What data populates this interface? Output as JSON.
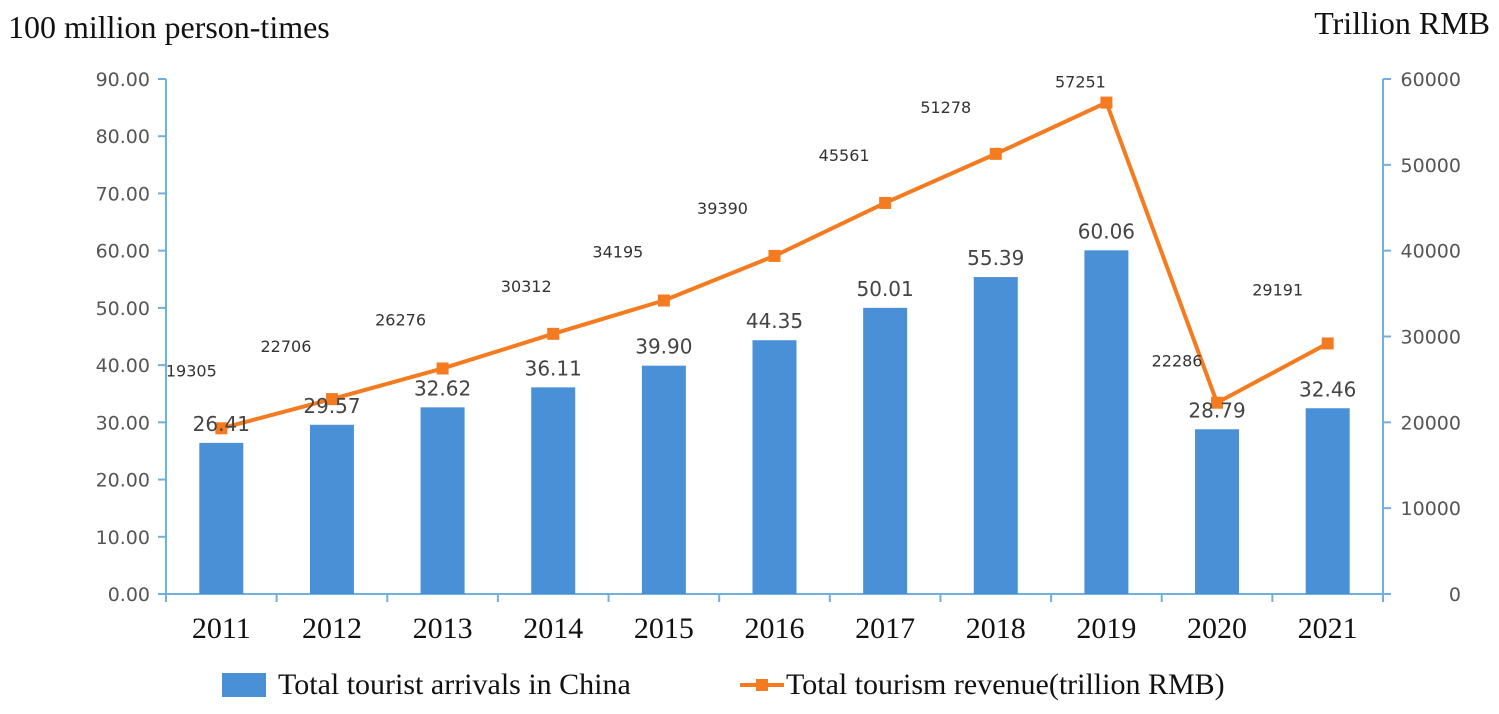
{
  "chart_data": {
    "type": "bar+line",
    "categories": [
      "2011",
      "2012",
      "2013",
      "2014",
      "2015",
      "2016",
      "2017",
      "2018",
      "2019",
      "2020",
      "2021"
    ],
    "left_axis": {
      "label": "100 million person-times",
      "ticks": [
        "0.00",
        "10.00",
        "20.00",
        "30.00",
        "40.00",
        "50.00",
        "60.00",
        "70.00",
        "80.00",
        "90.00"
      ],
      "range": [
        0,
        90
      ]
    },
    "right_axis": {
      "label": "Trillion RMB",
      "ticks": [
        "0",
        "10000",
        "20000",
        "30000",
        "40000",
        "50000",
        "60000"
      ],
      "range": [
        0,
        60000
      ]
    },
    "series": [
      {
        "name": "Total tourist arrivals in China",
        "type": "bar",
        "axis": "left",
        "color": "#4a90d6",
        "values": [
          26.41,
          29.57,
          32.62,
          36.11,
          39.9,
          44.35,
          50.01,
          55.39,
          60.06,
          28.79,
          32.46
        ],
        "labels": [
          "26.41",
          "29.57",
          "32.62",
          "36.11",
          "39.90",
          "44.35",
          "50.01",
          "55.39",
          "60.06",
          "28.79",
          "32.46"
        ]
      },
      {
        "name": "Total tourism revenue(trillion RMB)",
        "type": "line",
        "axis": "right",
        "color": "#f47b20",
        "values": [
          19305,
          22706,
          26276,
          30312,
          34195,
          39390,
          45561,
          51278,
          57251,
          22286,
          29191
        ],
        "labels": [
          "19305",
          "22706",
          "26276",
          "30312",
          "34195",
          "39390",
          "45561",
          "51278",
          "57251",
          "22286",
          "29191"
        ]
      }
    ],
    "legend": {
      "position": "bottom",
      "items": [
        "Total tourist arrivals in China",
        "Total tourism revenue(trillion RMB)"
      ]
    },
    "axis_color": "#6fb0e0"
  }
}
